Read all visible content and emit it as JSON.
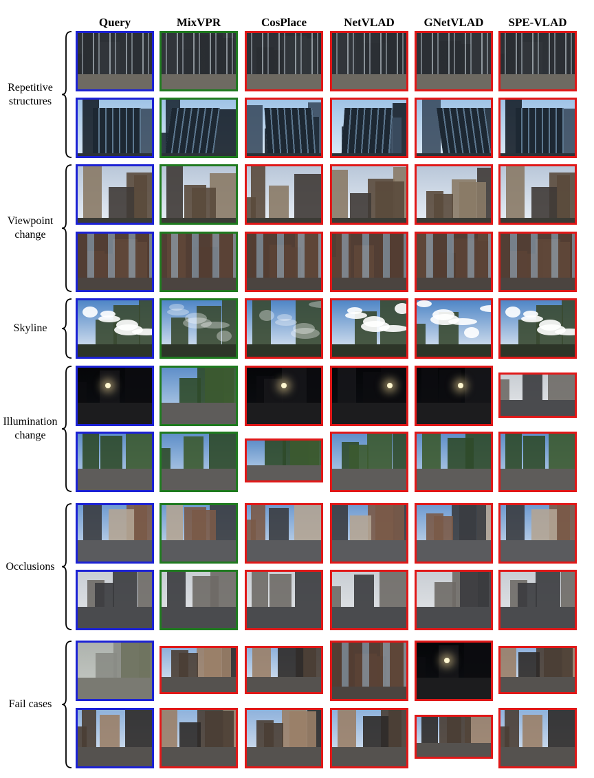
{
  "columns": [
    "Query",
    "MixVPR",
    "CosPlace",
    "NetVLAD",
    "GNetVLAD",
    "SPE-VLAD"
  ],
  "groups": [
    {
      "label_lines": [
        "Repetitive",
        "structures"
      ],
      "rows": 2
    },
    {
      "label_lines": [
        "Viewpoint",
        "change"
      ],
      "rows": 2
    },
    {
      "label_lines": [
        "Skyline"
      ],
      "rows": 1
    },
    {
      "label_lines": [
        "Illumination",
        "change"
      ],
      "rows": 2
    },
    {
      "label_lines": [
        "Occlusions"
      ],
      "rows": 2
    },
    {
      "label_lines": [
        "Fail cases"
      ],
      "rows": 2
    }
  ],
  "legend_colors": {
    "query": "#1c22d4",
    "correct": "#1f7a1f",
    "wrong": "#e01818"
  },
  "rows": [
    {
      "group": 0,
      "borders": [
        "blue",
        "green",
        "red",
        "red",
        "red",
        "red"
      ],
      "theme": "glass-lobby"
    },
    {
      "group": 0,
      "borders": [
        "blue",
        "green",
        "red",
        "red",
        "red",
        "red"
      ],
      "theme": "glass-tower"
    },
    {
      "group": 1,
      "borders": [
        "blue",
        "green",
        "red",
        "red",
        "red",
        "red"
      ],
      "theme": "city-up"
    },
    {
      "group": 1,
      "borders": [
        "blue",
        "green",
        "red",
        "red",
        "red",
        "red"
      ],
      "theme": "brick-facade"
    },
    {
      "group": 2,
      "borders": [
        "blue",
        "green",
        "red",
        "red",
        "red",
        "red"
      ],
      "theme": "cloud-sky"
    },
    {
      "group": 3,
      "borders": [
        "blue",
        "green",
        "red",
        "red",
        "red",
        "red"
      ],
      "theme": "night-street"
    },
    {
      "group": 3,
      "borders": [
        "blue",
        "green",
        "red",
        "red",
        "red",
        "red"
      ],
      "theme": "day-street"
    },
    {
      "group": 4,
      "borders": [
        "blue",
        "green",
        "red",
        "red",
        "red",
        "red"
      ],
      "theme": "cyclist-street"
    },
    {
      "group": 4,
      "borders": [
        "blue",
        "green",
        "red",
        "red",
        "red",
        "red"
      ],
      "theme": "overcast-road"
    },
    {
      "group": 5,
      "borders": [
        "blue",
        "red",
        "red",
        "red",
        "red",
        "red"
      ],
      "theme": "foggy-sidewalk"
    },
    {
      "group": 5,
      "borders": [
        "blue",
        "red",
        "red",
        "red",
        "red",
        "red"
      ],
      "theme": "busy-street"
    }
  ]
}
